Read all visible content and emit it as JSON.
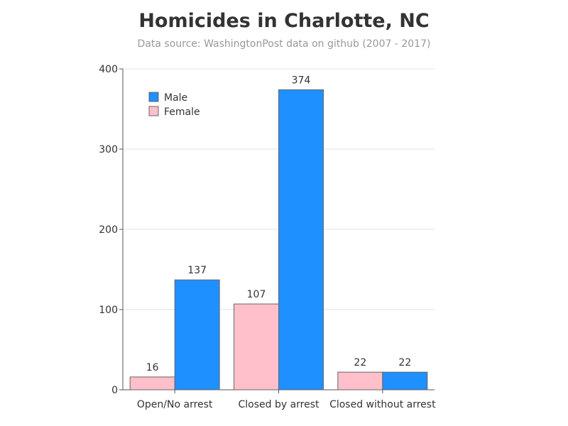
{
  "chart_data": {
    "type": "bar",
    "title": "Homicides in Charlotte, NC",
    "subtitle": "Data source: WashingtonPost data on github (2007 - 2017)",
    "categories": [
      "Open/No arrest",
      "Closed by arrest",
      "Closed without arrest"
    ],
    "series": [
      {
        "name": "Female",
        "values": [
          16,
          107,
          22
        ],
        "color": "#ffc0cb"
      },
      {
        "name": "Male",
        "values": [
          137,
          374,
          22
        ],
        "color": "#1e90ff"
      }
    ],
    "ylim": [
      0,
      400
    ],
    "yticks": [
      0,
      100,
      200,
      300,
      400
    ],
    "grid": true,
    "legend": {
      "placement": "top-left",
      "order": [
        "Male",
        "Female"
      ]
    }
  }
}
